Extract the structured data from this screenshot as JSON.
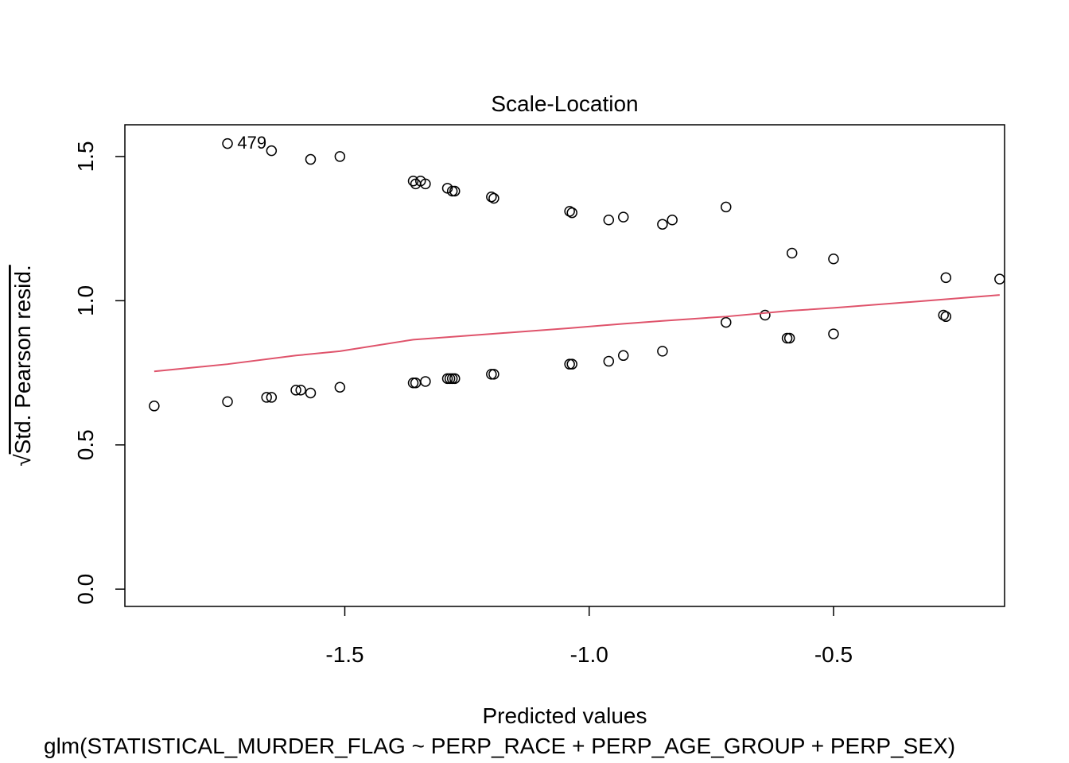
{
  "chart_data": {
    "type": "scatter",
    "title": "Scale-Location",
    "xlabel": "Predicted values",
    "ylabel": "Std. Pearson resid.",
    "ylabel_prefix": "√",
    "subtitle": "glm(STATISTICAL_MURDER_FLAG ~ PERP_RACE + PERP_AGE_GROUP + PERP_SEX)",
    "xlim": [
      -1.95,
      -0.15
    ],
    "ylim": [
      -0.06,
      1.61
    ],
    "x_ticks": [
      -1.5,
      -1.0,
      -0.5
    ],
    "x_tick_labels": [
      "-1.5",
      "-1.0",
      "-0.5"
    ],
    "y_ticks": [
      0.0,
      0.5,
      1.0,
      1.5
    ],
    "y_tick_labels": [
      "0.0",
      "0.5",
      "1.0",
      "1.5"
    ],
    "grid": false,
    "legend": "none",
    "point_color": "#000000",
    "smoother_color": "#DF536B",
    "point_labels": [
      {
        "x": -1.72,
        "y": 1.55,
        "text": "4"
      },
      {
        "x": -1.7,
        "y": 1.55,
        "text": "79"
      }
    ],
    "series": [
      {
        "values": [
          [
            -1.74,
            1.545
          ],
          [
            -1.65,
            1.52
          ],
          [
            -1.57,
            1.49
          ],
          [
            -1.51,
            1.5
          ],
          [
            -1.36,
            1.415
          ],
          [
            -1.355,
            1.405
          ],
          [
            -1.345,
            1.415
          ],
          [
            -1.335,
            1.405
          ],
          [
            -1.29,
            1.39
          ],
          [
            -1.28,
            1.38
          ],
          [
            -1.275,
            1.38
          ],
          [
            -1.2,
            1.36
          ],
          [
            -1.195,
            1.355
          ],
          [
            -1.04,
            1.31
          ],
          [
            -1.035,
            1.305
          ],
          [
            -0.96,
            1.28
          ],
          [
            -0.93,
            1.29
          ],
          [
            -0.85,
            1.265
          ],
          [
            -0.83,
            1.28
          ],
          [
            -0.72,
            1.325
          ],
          [
            -0.585,
            1.165
          ],
          [
            -0.5,
            1.145
          ],
          [
            -0.27,
            1.08
          ],
          [
            -0.16,
            1.075
          ],
          [
            -1.89,
            0.635
          ],
          [
            -1.74,
            0.65
          ],
          [
            -1.66,
            0.665
          ],
          [
            -1.65,
            0.665
          ],
          [
            -1.6,
            0.69
          ],
          [
            -1.59,
            0.69
          ],
          [
            -1.57,
            0.68
          ],
          [
            -1.51,
            0.7
          ],
          [
            -1.36,
            0.715
          ],
          [
            -1.355,
            0.715
          ],
          [
            -1.335,
            0.72
          ],
          [
            -1.29,
            0.73
          ],
          [
            -1.285,
            0.73
          ],
          [
            -1.28,
            0.73
          ],
          [
            -1.275,
            0.73
          ],
          [
            -1.2,
            0.745
          ],
          [
            -1.195,
            0.745
          ],
          [
            -1.04,
            0.78
          ],
          [
            -1.035,
            0.78
          ],
          [
            -0.96,
            0.79
          ],
          [
            -0.93,
            0.81
          ],
          [
            -0.85,
            0.825
          ],
          [
            -0.72,
            0.925
          ],
          [
            -0.64,
            0.95
          ],
          [
            -0.595,
            0.87
          ],
          [
            -0.59,
            0.87
          ],
          [
            -0.5,
            0.885
          ],
          [
            -0.275,
            0.95
          ],
          [
            -0.27,
            0.945
          ]
        ]
      },
      {
        "line": true,
        "values": [
          [
            -1.89,
            0.755
          ],
          [
            -1.74,
            0.78
          ],
          [
            -1.6,
            0.81
          ],
          [
            -1.51,
            0.825
          ],
          [
            -1.36,
            0.865
          ],
          [
            -1.28,
            0.875
          ],
          [
            -1.2,
            0.885
          ],
          [
            -1.04,
            0.905
          ],
          [
            -0.93,
            0.92
          ],
          [
            -0.85,
            0.93
          ],
          [
            -0.72,
            0.945
          ],
          [
            -0.59,
            0.965
          ],
          [
            -0.5,
            0.975
          ],
          [
            -0.27,
            1.005
          ],
          [
            -0.16,
            1.02
          ]
        ]
      }
    ]
  }
}
